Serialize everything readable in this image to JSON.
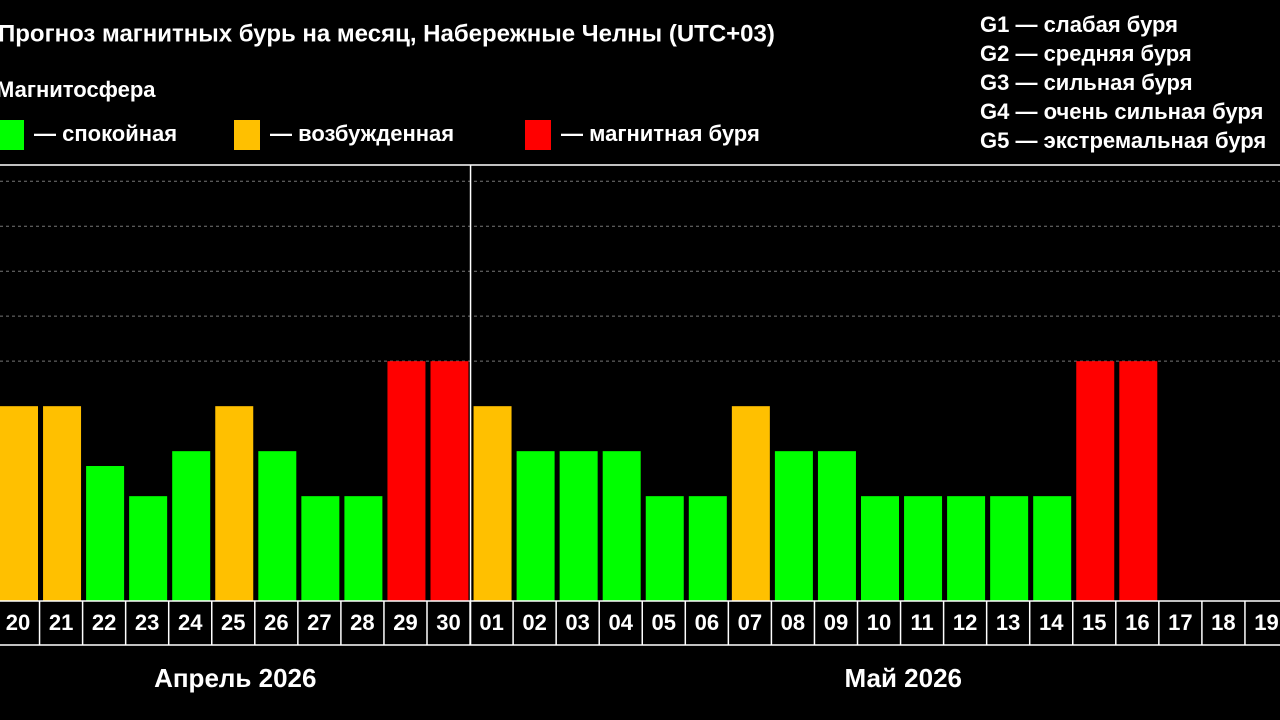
{
  "chart_data": {
    "type": "bar",
    "title": "Прогноз магнитных бурь на месяц, Набережные Челны (UTC+03)",
    "legend_title": "Магнитосфера",
    "legend": [
      {
        "name": "— спокойная",
        "color": "#00ff00"
      },
      {
        "name": "— возбужденная",
        "color": "#ffc000"
      },
      {
        "name": "— магнитная буря",
        "color": "#ff0000"
      }
    ],
    "storm_scale": [
      "G1 — слабая буря",
      "G2 — средняя буря",
      "G3 — сильная буря",
      "G4 — очень сильная буря",
      "G5 — экстремальная буря"
    ],
    "categories": [
      "20",
      "21",
      "22",
      "23",
      "24",
      "25",
      "26",
      "27",
      "28",
      "29",
      "30",
      "01",
      "02",
      "03",
      "04",
      "05",
      "06",
      "07",
      "08",
      "09",
      "10",
      "11",
      "12",
      "13",
      "14",
      "15",
      "16",
      "17",
      "18",
      "19"
    ],
    "values": [
      4.33,
      4.33,
      3,
      2.33,
      3.33,
      4.33,
      3.33,
      2.33,
      2.33,
      5.33,
      5.33,
      4.33,
      3.33,
      3.33,
      3.33,
      2.33,
      2.33,
      4.33,
      3.33,
      3.33,
      2.33,
      2.33,
      2.33,
      2.33,
      2.33,
      5.33,
      5.33,
      null,
      null,
      null
    ],
    "colors": [
      "#ffc000",
      "#ffc000",
      "#00ff00",
      "#00ff00",
      "#00ff00",
      "#ffc000",
      "#00ff00",
      "#00ff00",
      "#00ff00",
      "#ff0000",
      "#ff0000",
      "#ffc000",
      "#00ff00",
      "#00ff00",
      "#00ff00",
      "#00ff00",
      "#00ff00",
      "#ffc000",
      "#00ff00",
      "#00ff00",
      "#00ff00",
      "#00ff00",
      "#00ff00",
      "#00ff00",
      "#00ff00",
      "#ff0000",
      "#ff0000",
      null,
      null,
      null
    ],
    "months": [
      "Апрель 2026",
      "Май 2026"
    ],
    "ylim": [
      0,
      9.69
    ],
    "grid_lines": [
      5.33,
      6.33,
      7.33,
      8.33,
      9.33
    ]
  }
}
